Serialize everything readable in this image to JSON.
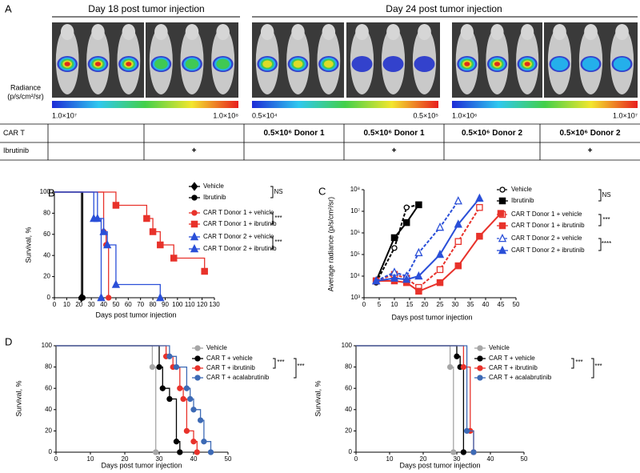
{
  "panel_a": {
    "label": "A",
    "headers": [
      "Day 18 post tumor injection",
      "Day 24 post tumor injection"
    ],
    "radiance_label": "Radiance",
    "radiance_unit": "(p/s/cm²/sr)",
    "scales": [
      [
        "1.0×10⁷",
        "1.0×10⁸"
      ],
      [
        "0.5×10⁴",
        "0.5×10⁵"
      ],
      [
        "1.0×10⁶",
        "1.0×10⁷"
      ]
    ],
    "table": {
      "rows": [
        [
          "CAR T",
          null,
          null,
          "0.5×10⁶ Donor 1",
          "0.5×10⁶ Donor 1",
          "0.5×10⁶ Donor 2",
          "0.5×10⁶ Donor 2"
        ],
        [
          "Ibrutinib",
          null,
          "+",
          null,
          "+",
          null,
          "+"
        ]
      ]
    }
  },
  "chart_data": [
    {
      "type": "line",
      "step": true,
      "label": "B",
      "xlabel": "Days post tumor injection",
      "ylabel": "Survival, %",
      "xlim": [
        0,
        130
      ],
      "ylim": [
        0,
        100
      ],
      "xticks": [
        0,
        10,
        20,
        30,
        40,
        50,
        60,
        70,
        80,
        90,
        100,
        110,
        120,
        130
      ],
      "yticks": [
        0,
        20,
        40,
        60,
        80,
        100
      ],
      "annotations": [
        "NS",
        "***",
        "***"
      ],
      "series": [
        {
          "name": "Vehicle",
          "color": "#000000",
          "marker": "diamond",
          "filled": true,
          "x": [
            0,
            22
          ],
          "values": [
            100,
            0
          ]
        },
        {
          "name": "Ibrutinib",
          "color": "#000000",
          "marker": "circle",
          "filled": true,
          "x": [
            0,
            23
          ],
          "values": [
            100,
            0
          ]
        },
        {
          "name": "CAR  T Donor 1 + vehicle",
          "color": "#e8322b",
          "marker": "circle",
          "filled": true,
          "x": [
            0,
            40,
            42,
            44
          ],
          "values": [
            100,
            62.5,
            50,
            0
          ]
        },
        {
          "name": "CAR T Donor 1 + ibrutinib",
          "color": "#e8322b",
          "marker": "square",
          "filled": true,
          "x": [
            0,
            50,
            75,
            80,
            86,
            97,
            122
          ],
          "values": [
            100,
            87.5,
            75,
            62.5,
            50,
            37.5,
            25
          ]
        },
        {
          "name": "CAR T Donor 2 + vehicle",
          "color": "#2a4fd8",
          "marker": "triangle",
          "filled": true,
          "x": [
            0,
            32,
            38
          ],
          "values": [
            100,
            75,
            0
          ]
        },
        {
          "name": "CAR T Donor 2 + ibrutinib",
          "color": "#2a4fd8",
          "marker": "triangle",
          "filled": true,
          "x": [
            0,
            35,
            40,
            43,
            50,
            86
          ],
          "values": [
            100,
            75,
            62.5,
            50,
            12.5,
            0
          ]
        }
      ]
    },
    {
      "type": "line",
      "log_y": true,
      "label": "C",
      "xlabel": "Days post tumor injection",
      "ylabel": "Average radiance (p/s/cm²/sr)",
      "xlim": [
        0,
        50
      ],
      "ylim": [
        1000,
        100000000
      ],
      "xticks": [
        0,
        5,
        10,
        15,
        20,
        25,
        30,
        35,
        40,
        45,
        50
      ],
      "yticks": [
        {
          "value": 1000,
          "label": "10³"
        },
        {
          "value": 10000,
          "label": "10⁴"
        },
        {
          "value": 100000,
          "label": "10⁵"
        },
        {
          "value": 1000000,
          "label": "10⁶"
        },
        {
          "value": 10000000,
          "label": "10⁷"
        },
        {
          "value": 100000000,
          "label": "10⁸"
        }
      ],
      "annotations": [
        "NS",
        "***",
        "****"
      ],
      "series": [
        {
          "name": "Vehicle",
          "color": "#000000",
          "marker": "circle",
          "filled": false,
          "dashed": true,
          "x": [
            4,
            10,
            14,
            18
          ],
          "values": [
            5000,
            200000,
            15000000,
            20000000
          ]
        },
        {
          "name": "Ibrutinib",
          "color": "#000000",
          "marker": "square",
          "filled": true,
          "dashed": false,
          "x": [
            4,
            10,
            14,
            18
          ],
          "values": [
            6000,
            600000,
            3000000,
            20000000
          ]
        },
        {
          "name": "CAR T Donor 1 + vehicle",
          "color": "#e8322b",
          "marker": "square",
          "filled": false,
          "dashed": true,
          "x": [
            4,
            10,
            14,
            18,
            25,
            31,
            38
          ],
          "values": [
            6000,
            12000,
            8000,
            3000,
            20000,
            400000,
            15000000
          ]
        },
        {
          "name": "CAR T Donor 1 + ibrutinib",
          "color": "#e8322b",
          "marker": "square",
          "filled": true,
          "dashed": false,
          "x": [
            4,
            10,
            14,
            18,
            25,
            31,
            38,
            45
          ],
          "values": [
            6000,
            6000,
            5000,
            2000,
            5000,
            30000,
            700000,
            8000000
          ]
        },
        {
          "name": "CAR T Donor 2 + vehicle",
          "color": "#2a4fd8",
          "marker": "triangle",
          "filled": false,
          "dashed": true,
          "x": [
            4,
            10,
            14,
            18,
            25,
            31
          ],
          "values": [
            6000,
            15000,
            10000,
            120000,
            1800000,
            30000000
          ]
        },
        {
          "name": "CAR T Donor 2 + ibrutinib",
          "color": "#2a4fd8",
          "marker": "triangle",
          "filled": true,
          "dashed": false,
          "x": [
            4,
            10,
            14,
            18,
            25,
            31,
            38
          ],
          "values": [
            6000,
            8000,
            7000,
            10000,
            100000,
            2500000,
            40000000
          ]
        }
      ]
    },
    {
      "type": "line",
      "step": true,
      "label": "D",
      "xlabel": "Days post tumor injection",
      "ylabel": "Survival, %",
      "xlim": [
        0,
        50
      ],
      "ylim": [
        0,
        100
      ],
      "xticks": [
        0,
        10,
        20,
        30,
        40,
        50
      ],
      "yticks": [
        0,
        20,
        40,
        60,
        80,
        100
      ],
      "annotations": [
        "***",
        "***"
      ],
      "series": [
        {
          "name": "Vehicle",
          "color": "#a6a6a6",
          "marker": "circle",
          "filled": true,
          "x": [
            0,
            28,
            29
          ],
          "values": [
            100,
            80,
            0
          ]
        },
        {
          "name": "CAR T + vehicle",
          "color": "#000000",
          "marker": "circle",
          "filled": true,
          "x": [
            0,
            30,
            31,
            33,
            35,
            36
          ],
          "values": [
            100,
            80,
            60,
            50,
            10,
            0
          ]
        },
        {
          "name": "CAR T + ibrutinib",
          "color": "#e8322b",
          "marker": "circle",
          "filled": true,
          "x": [
            0,
            32,
            34,
            36,
            37,
            38,
            40,
            41
          ],
          "values": [
            100,
            90,
            80,
            60,
            50,
            20,
            10,
            0
          ]
        },
        {
          "name": "CAR T + acalabrutinib",
          "color": "#3d6ab5",
          "marker": "circle",
          "filled": true,
          "x": [
            0,
            33,
            35,
            38,
            39,
            40,
            42,
            43,
            45
          ],
          "values": [
            100,
            90,
            80,
            60,
            50,
            40,
            30,
            10,
            0
          ]
        }
      ]
    },
    {
      "type": "line",
      "step": true,
      "xlabel": "Days post tumor injection",
      "ylabel": "Survival, %",
      "xlim": [
        0,
        50
      ],
      "ylim": [
        0,
        100
      ],
      "xticks": [
        0,
        10,
        20,
        30,
        40,
        50
      ],
      "yticks": [
        0,
        20,
        40,
        60,
        80,
        100
      ],
      "annotations": [
        "***",
        "***"
      ],
      "series": [
        {
          "name": "Vehicle",
          "color": "#a6a6a6",
          "marker": "circle",
          "filled": true,
          "x": [
            0,
            28,
            29
          ],
          "values": [
            100,
            80,
            0
          ]
        },
        {
          "name": "CAR T + vehicle",
          "color": "#000000",
          "marker": "circle",
          "filled": true,
          "x": [
            0,
            30,
            31,
            32
          ],
          "values": [
            100,
            90,
            80,
            0
          ]
        },
        {
          "name": "CAR T + ibrutinib",
          "color": "#e8322b",
          "marker": "circle",
          "filled": true,
          "x": [
            0,
            32,
            34,
            35
          ],
          "values": [
            100,
            80,
            20,
            0
          ]
        },
        {
          "name": "CAR T + acalabrutinib",
          "color": "#3d6ab5",
          "marker": "circle",
          "filled": true,
          "x": [
            0,
            33,
            35
          ],
          "values": [
            100,
            20,
            0
          ]
        }
      ]
    }
  ]
}
